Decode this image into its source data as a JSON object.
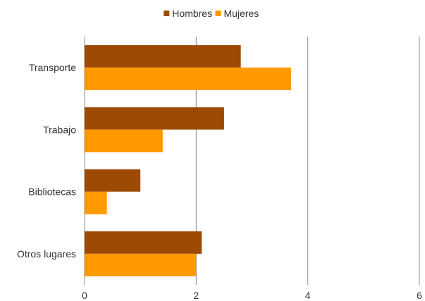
{
  "chart_data": {
    "type": "bar",
    "orientation": "horizontal",
    "title": "",
    "xlabel": "",
    "ylabel": "",
    "categories": [
      "Transporte",
      "Trabajo",
      "Bibliotecas",
      "Otros lugares"
    ],
    "series": [
      {
        "name": "Hombres",
        "color": "#9c4a04",
        "values": [
          2.8,
          2.5,
          1.0,
          2.1
        ]
      },
      {
        "name": "Mujeres",
        "color": "#ff9900",
        "values": [
          3.7,
          1.4,
          0.4,
          2.0
        ]
      }
    ],
    "xlim": [
      0,
      6
    ],
    "xticks": [
      "0",
      "2",
      "4",
      "6"
    ],
    "grid": "vertical",
    "legend_position": "top-center"
  }
}
